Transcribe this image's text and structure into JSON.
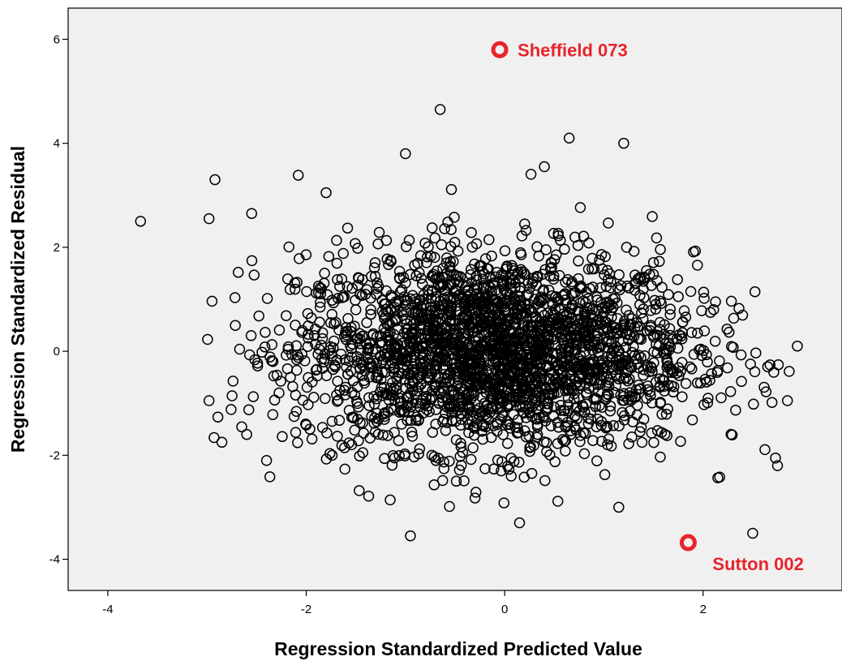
{
  "chart_data": {
    "type": "scatter",
    "title": "",
    "xlabel": "Regression Standardized Predicted Value",
    "ylabel": "Regression Standardized Residual",
    "xlim": [
      -4.4,
      3.4
    ],
    "ylim": [
      -4.6,
      6.6
    ],
    "x_ticks": [
      -4,
      -2,
      0,
      2
    ],
    "x_tick_labels": [
      "-4",
      "-2",
      "0",
      "2"
    ],
    "y_ticks": [
      -4,
      -2,
      0,
      2,
      4,
      6
    ],
    "y_tick_labels": [
      "-4",
      "-2",
      "0",
      "2",
      "4",
      "6"
    ],
    "grid": false,
    "background_color": "#f0f0f0",
    "marker": "open-circle",
    "marker_color": "#000000",
    "highlight_color": "#e8242b",
    "cloud": {
      "description_points": "dense cloud of several thousand cases; approx. x from -3.7 to 3.0, y from -3.6 to 4.7",
      "x_center": -0.1,
      "y_center": 0.0
    },
    "points": [
      {
        "x": -3.67,
        "y": 2.5
      },
      {
        "x": -2.98,
        "y": 2.55
      },
      {
        "x": -2.92,
        "y": 3.3
      },
      {
        "x": -2.98,
        "y": -0.95
      },
      {
        "x": -2.85,
        "y": -1.75
      },
      {
        "x": -2.55,
        "y": 2.65
      },
      {
        "x": -2.4,
        "y": -2.1
      },
      {
        "x": -2.6,
        "y": -1.6
      },
      {
        "x": -1.8,
        "y": 3.05
      },
      {
        "x": -1.0,
        "y": 3.8
      },
      {
        "x": -0.65,
        "y": 4.65
      },
      {
        "x": 0.4,
        "y": 3.55
      },
      {
        "x": 0.65,
        "y": 4.1
      },
      {
        "x": 1.2,
        "y": 4.0
      },
      {
        "x": 2.5,
        "y": -3.5
      },
      {
        "x": 2.95,
        "y": 0.1
      },
      {
        "x": -0.95,
        "y": -3.55
      },
      {
        "x": 0.15,
        "y": -3.3
      },
      {
        "x": 1.15,
        "y": -3.0
      },
      {
        "x": 2.75,
        "y": -2.2
      },
      {
        "x": 2.85,
        "y": -0.95
      }
    ],
    "outliers": [
      {
        "name": "Sheffield 073",
        "x": -0.05,
        "y": 5.8
      },
      {
        "name": "Sutton 002",
        "x": 1.85,
        "y": -3.68
      }
    ]
  }
}
